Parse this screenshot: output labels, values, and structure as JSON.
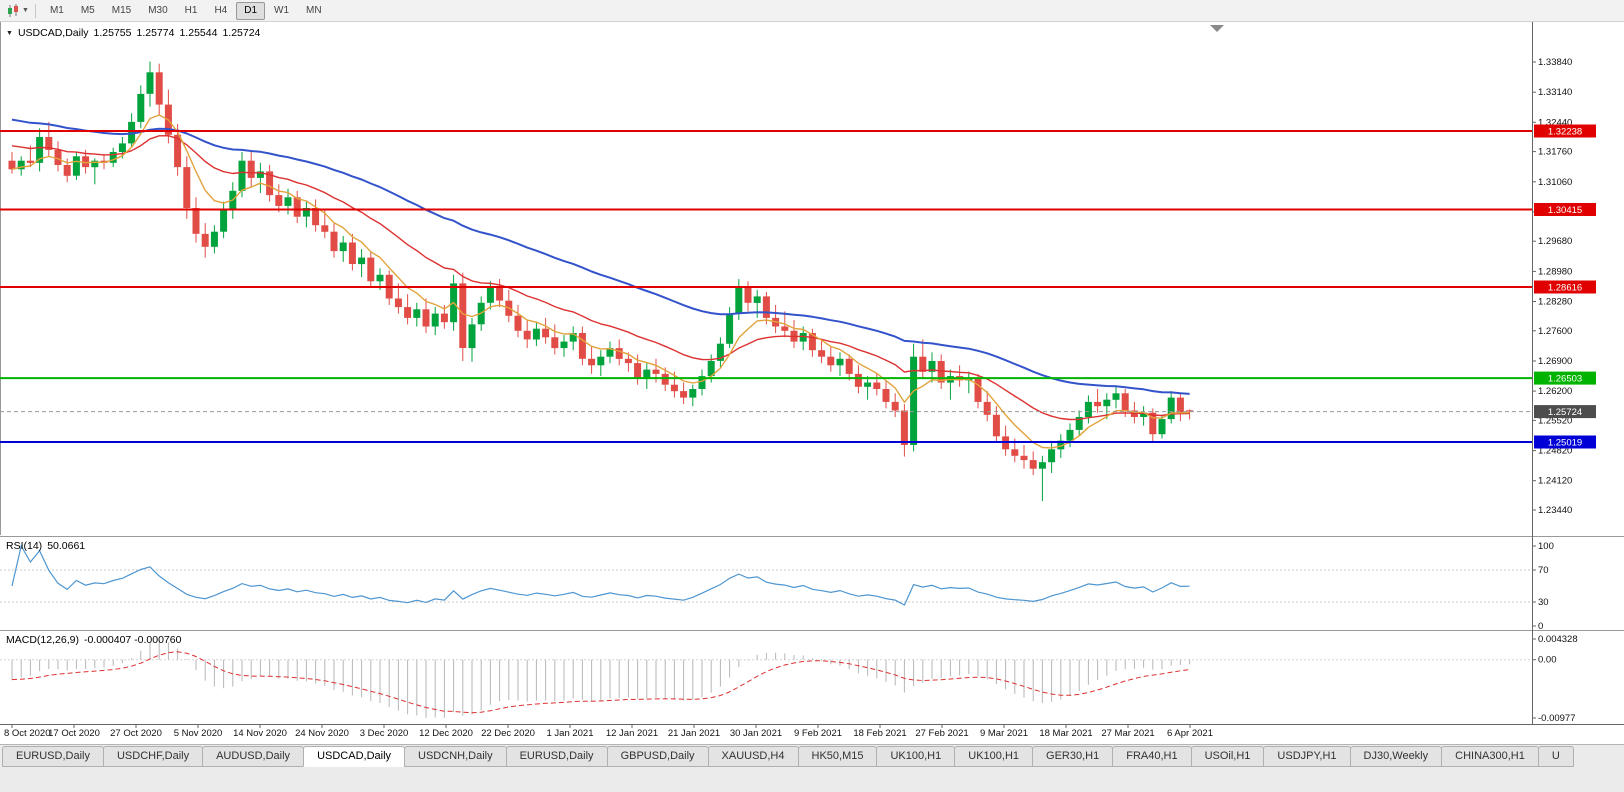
{
  "toolbar": {
    "timeframes": [
      "M1",
      "M5",
      "M15",
      "M30",
      "H1",
      "H4",
      "D1",
      "W1",
      "MN"
    ],
    "active_timeframe": "D1"
  },
  "chart_header": {
    "collapse_icon": "▼",
    "title": "USDCAD,Daily",
    "open": "1.25755",
    "high": "1.25774",
    "low": "1.25544",
    "close": "1.25724"
  },
  "price_axis": {
    "ticks": [
      "1.33840",
      "1.33140",
      "1.32440",
      "1.31760",
      "1.31060",
      "1.30360",
      "1.29680",
      "1.28980",
      "1.28280",
      "1.27600",
      "1.26900",
      "1.26200",
      "1.25520",
      "1.24820",
      "1.24120",
      "1.23440"
    ],
    "current_price": "1.25724"
  },
  "rsi": {
    "label": "RSI(14)",
    "value": "50.0661",
    "levels": [
      "100",
      "70",
      "30",
      "0"
    ]
  },
  "macd": {
    "label": "MACD(12,26,9)",
    "values": "-0.000407 -0.000760",
    "axis": [
      "0.004328",
      "0.00",
      "-0.00977"
    ]
  },
  "date_axis": [
    "8 Oct 2020",
    "17 Oct 2020",
    "27 Oct 2020",
    "5 Nov 2020",
    "14 Nov 2020",
    "24 Nov 2020",
    "3 Dec 2020",
    "12 Dec 2020",
    "22 Dec 2020",
    "1 Jan 2021",
    "12 Jan 2021",
    "21 Jan 2021",
    "30 Jan 2021",
    "9 Feb 2021",
    "18 Feb 2021",
    "27 Feb 2021",
    "9 Mar 2021",
    "18 Mar 2021",
    "27 Mar 2021",
    "6 Apr 2021"
  ],
  "tabs": [
    "EURUSD,Daily",
    "USDCHF,Daily",
    "AUDUSD,Daily",
    "USDCAD,Daily",
    "USDCNH,Daily",
    "EURUSD,Daily",
    "GBPUSD,Daily",
    "XAUUSD,H4",
    "HK50,M15",
    "UK100,H1",
    "UK100,H1",
    "GER30,H1",
    "FRA40,H1",
    "USOil,H1",
    "USDJPY,H1",
    "DJ30,Weekly",
    "CHINA300,H1",
    "U"
  ],
  "active_tab_index": 3,
  "colors": {
    "bull": "#00A33C",
    "bear": "#E24C46",
    "ma_fast": "#E2A33C",
    "ma_mid": "#DD3131",
    "ma_slow": "#3353CB",
    "rsi_line": "#4E96D1",
    "macd_hist": "#B6B6B6",
    "macd_signal": "#DD3131",
    "current_price_badge": "#4D4D4D"
  },
  "chart_data": {
    "type": "candlestick",
    "symbol": "USDCAD",
    "timeframe": "Daily",
    "current_price": 1.25724,
    "price_range": [
      1.2344,
      1.3384
    ],
    "lines": [
      {
        "price": 1.32238,
        "label": "1.32238",
        "color": "#E00000",
        "role": "resistance"
      },
      {
        "price": 1.30415,
        "label": "1.30415",
        "color": "#E00000",
        "role": "resistance"
      },
      {
        "price": 1.28616,
        "label": "1.28616",
        "color": "#E00000",
        "role": "resistance"
      },
      {
        "price": 1.26503,
        "label": "1.26503",
        "color": "#00B300",
        "role": "support"
      },
      {
        "price": 1.25019,
        "label": "1.25019",
        "color": "#0000D6",
        "role": "support"
      }
    ],
    "indicators": {
      "rsi_label": "RSI(14)",
      "rsi_current": 50.0661,
      "macd_label": "MACD(12,26,9)",
      "macd_current": -0.000407,
      "macd_signal_current": -0.00076,
      "macd_scale_max": 0.004328,
      "macd_scale_min": -0.00977
    },
    "candles": [
      [
        1.3155,
        1.3175,
        1.3125,
        1.3135
      ],
      [
        1.3135,
        1.3165,
        1.312,
        1.3155
      ],
      [
        1.3155,
        1.319,
        1.314,
        1.315
      ],
      [
        1.315,
        1.323,
        1.313,
        1.321
      ],
      [
        1.321,
        1.3245,
        1.3165,
        1.318
      ],
      [
        1.318,
        1.32,
        1.313,
        1.3145
      ],
      [
        1.3145,
        1.316,
        1.3105,
        1.312
      ],
      [
        1.312,
        1.3175,
        1.311,
        1.3165
      ],
      [
        1.3165,
        1.318,
        1.3125,
        1.314
      ],
      [
        1.314,
        1.316,
        1.31,
        1.3155
      ],
      [
        1.3155,
        1.317,
        1.3135,
        1.315
      ],
      [
        1.315,
        1.3185,
        1.314,
        1.3175
      ],
      [
        1.3175,
        1.321,
        1.316,
        1.3195
      ],
      [
        1.3195,
        1.3265,
        1.3185,
        1.3245
      ],
      [
        1.3245,
        1.333,
        1.323,
        1.331
      ],
      [
        1.331,
        1.3385,
        1.328,
        1.336
      ],
      [
        1.336,
        1.338,
        1.326,
        1.3285
      ],
      [
        1.3285,
        1.332,
        1.3195,
        1.3215
      ],
      [
        1.3215,
        1.324,
        1.312,
        1.314
      ],
      [
        1.314,
        1.3165,
        1.302,
        1.3045
      ],
      [
        1.3045,
        1.307,
        1.2965,
        1.2985
      ],
      [
        1.2985,
        1.301,
        1.293,
        1.2955
      ],
      [
        1.2955,
        1.3005,
        1.294,
        1.299
      ],
      [
        1.299,
        1.306,
        1.2975,
        1.304
      ],
      [
        1.304,
        1.3105,
        1.302,
        1.3085
      ],
      [
        1.3085,
        1.3175,
        1.307,
        1.3155
      ],
      [
        1.3155,
        1.3175,
        1.3095,
        1.3115
      ],
      [
        1.3115,
        1.315,
        1.308,
        1.313
      ],
      [
        1.313,
        1.3145,
        1.306,
        1.3075
      ],
      [
        1.3075,
        1.31,
        1.3035,
        1.305
      ],
      [
        1.305,
        1.309,
        1.303,
        1.307
      ],
      [
        1.307,
        1.3085,
        1.301,
        1.3025
      ],
      [
        1.3025,
        1.306,
        1.3,
        1.3045
      ],
      [
        1.3045,
        1.3065,
        1.299,
        1.3005
      ],
      [
        1.3005,
        1.304,
        1.2975,
        1.299
      ],
      [
        1.299,
        1.301,
        1.293,
        1.2945
      ],
      [
        1.2945,
        1.298,
        1.292,
        1.2965
      ],
      [
        1.2965,
        1.2985,
        1.29,
        1.2915
      ],
      [
        1.2915,
        1.295,
        1.2885,
        1.293
      ],
      [
        1.293,
        1.2945,
        1.286,
        1.2875
      ],
      [
        1.2875,
        1.2905,
        1.2855,
        1.289
      ],
      [
        1.289,
        1.29,
        1.282,
        1.2835
      ],
      [
        1.2835,
        1.287,
        1.28,
        1.2815
      ],
      [
        1.2815,
        1.2845,
        1.2775,
        1.279
      ],
      [
        1.279,
        1.2825,
        1.277,
        1.281
      ],
      [
        1.281,
        1.2835,
        1.2755,
        1.277
      ],
      [
        1.277,
        1.2815,
        1.275,
        1.28
      ],
      [
        1.28,
        1.282,
        1.2765,
        1.278
      ],
      [
        1.278,
        1.289,
        1.276,
        1.287
      ],
      [
        1.287,
        1.2895,
        1.269,
        1.272
      ],
      [
        1.272,
        1.279,
        1.2688,
        1.2775
      ],
      [
        1.2775,
        1.284,
        1.276,
        1.2825
      ],
      [
        1.2825,
        1.2875,
        1.281,
        1.286
      ],
      [
        1.286,
        1.288,
        1.2815,
        1.283
      ],
      [
        1.283,
        1.2855,
        1.278,
        1.2795
      ],
      [
        1.2795,
        1.282,
        1.2745,
        1.276
      ],
      [
        1.276,
        1.2785,
        1.272,
        1.274
      ],
      [
        1.274,
        1.278,
        1.2725,
        1.2765
      ],
      [
        1.2765,
        1.279,
        1.273,
        1.2745
      ],
      [
        1.2745,
        1.2775,
        1.2705,
        1.272
      ],
      [
        1.272,
        1.275,
        1.27,
        1.2735
      ],
      [
        1.2735,
        1.277,
        1.2715,
        1.2755
      ],
      [
        1.2755,
        1.277,
        1.268,
        1.2695
      ],
      [
        1.2695,
        1.2725,
        1.266,
        1.268
      ],
      [
        1.268,
        1.2715,
        1.2655,
        1.27
      ],
      [
        1.27,
        1.2735,
        1.2685,
        1.272
      ],
      [
        1.272,
        1.274,
        1.268,
        1.2695
      ],
      [
        1.2695,
        1.271,
        1.2665,
        1.2685
      ],
      [
        1.2685,
        1.2705,
        1.2635,
        1.265
      ],
      [
        1.265,
        1.2685,
        1.2625,
        1.267
      ],
      [
        1.267,
        1.2695,
        1.264,
        1.266
      ],
      [
        1.266,
        1.2675,
        1.262,
        1.2635
      ],
      [
        1.2635,
        1.2665,
        1.2605,
        1.262
      ],
      [
        1.262,
        1.264,
        1.259,
        1.2605
      ],
      [
        1.2605,
        1.2635,
        1.2585,
        1.2625
      ],
      [
        1.2625,
        1.267,
        1.261,
        1.2655
      ],
      [
        1.2655,
        1.2705,
        1.264,
        1.269
      ],
      [
        1.269,
        1.2745,
        1.2675,
        1.273
      ],
      [
        1.273,
        1.2815,
        1.272,
        1.28
      ],
      [
        1.28,
        1.288,
        1.2785,
        1.286
      ],
      [
        1.286,
        1.2875,
        1.2805,
        1.2825
      ],
      [
        1.2825,
        1.2855,
        1.279,
        1.284
      ],
      [
        1.284,
        1.285,
        1.2775,
        1.279
      ],
      [
        1.279,
        1.282,
        1.2755,
        1.277
      ],
      [
        1.277,
        1.2805,
        1.2745,
        1.276
      ],
      [
        1.276,
        1.2785,
        1.272,
        1.2735
      ],
      [
        1.2735,
        1.277,
        1.2715,
        1.2755
      ],
      [
        1.2755,
        1.2765,
        1.27,
        1.2715
      ],
      [
        1.2715,
        1.274,
        1.2685,
        1.27
      ],
      [
        1.27,
        1.2725,
        1.2665,
        1.268
      ],
      [
        1.268,
        1.271,
        1.2655,
        1.2695
      ],
      [
        1.2695,
        1.2705,
        1.2645,
        1.266
      ],
      [
        1.266,
        1.268,
        1.2615,
        1.263
      ],
      [
        1.263,
        1.2655,
        1.26,
        1.264
      ],
      [
        1.264,
        1.266,
        1.261,
        1.2625
      ],
      [
        1.2625,
        1.2645,
        1.258,
        1.2595
      ],
      [
        1.2595,
        1.2615,
        1.256,
        1.2575
      ],
      [
        1.2575,
        1.259,
        1.2468,
        1.2495
      ],
      [
        1.2495,
        1.273,
        1.248,
        1.27
      ],
      [
        1.27,
        1.274,
        1.265,
        1.2665
      ],
      [
        1.2665,
        1.271,
        1.264,
        1.269
      ],
      [
        1.269,
        1.2705,
        1.2625,
        1.264
      ],
      [
        1.264,
        1.267,
        1.26,
        1.2655
      ],
      [
        1.2655,
        1.268,
        1.263,
        1.2645
      ],
      [
        1.2645,
        1.2665,
        1.2615,
        1.265
      ],
      [
        1.265,
        1.266,
        1.258,
        1.2595
      ],
      [
        1.2595,
        1.262,
        1.255,
        1.2565
      ],
      [
        1.2565,
        1.2585,
        1.25,
        1.2515
      ],
      [
        1.2515,
        1.254,
        1.247,
        1.2485
      ],
      [
        1.2485,
        1.251,
        1.2455,
        1.247
      ],
      [
        1.247,
        1.2495,
        1.244,
        1.246
      ],
      [
        1.246,
        1.248,
        1.2425,
        1.244
      ],
      [
        1.244,
        1.247,
        1.2365,
        1.2455
      ],
      [
        1.2455,
        1.25,
        1.243,
        1.2485
      ],
      [
        1.2485,
        1.252,
        1.2465,
        1.2505
      ],
      [
        1.2505,
        1.2545,
        1.249,
        1.253
      ],
      [
        1.253,
        1.2575,
        1.2515,
        1.256
      ],
      [
        1.256,
        1.261,
        1.2545,
        1.2595
      ],
      [
        1.2595,
        1.2625,
        1.257,
        1.2585
      ],
      [
        1.2585,
        1.2615,
        1.2555,
        1.26
      ],
      [
        1.26,
        1.263,
        1.258,
        1.2615
      ],
      [
        1.2615,
        1.2625,
        1.256,
        1.2575
      ],
      [
        1.2575,
        1.2595,
        1.2545,
        1.256
      ],
      [
        1.256,
        1.2585,
        1.254,
        1.257
      ],
      [
        1.257,
        1.258,
        1.25,
        1.252
      ],
      [
        1.252,
        1.2565,
        1.251,
        1.2555
      ],
      [
        1.2555,
        1.262,
        1.2545,
        1.2605
      ],
      [
        1.2605,
        1.2615,
        1.255,
        1.257
      ],
      [
        1.25755,
        1.25774,
        1.25544,
        1.25724
      ]
    ]
  }
}
